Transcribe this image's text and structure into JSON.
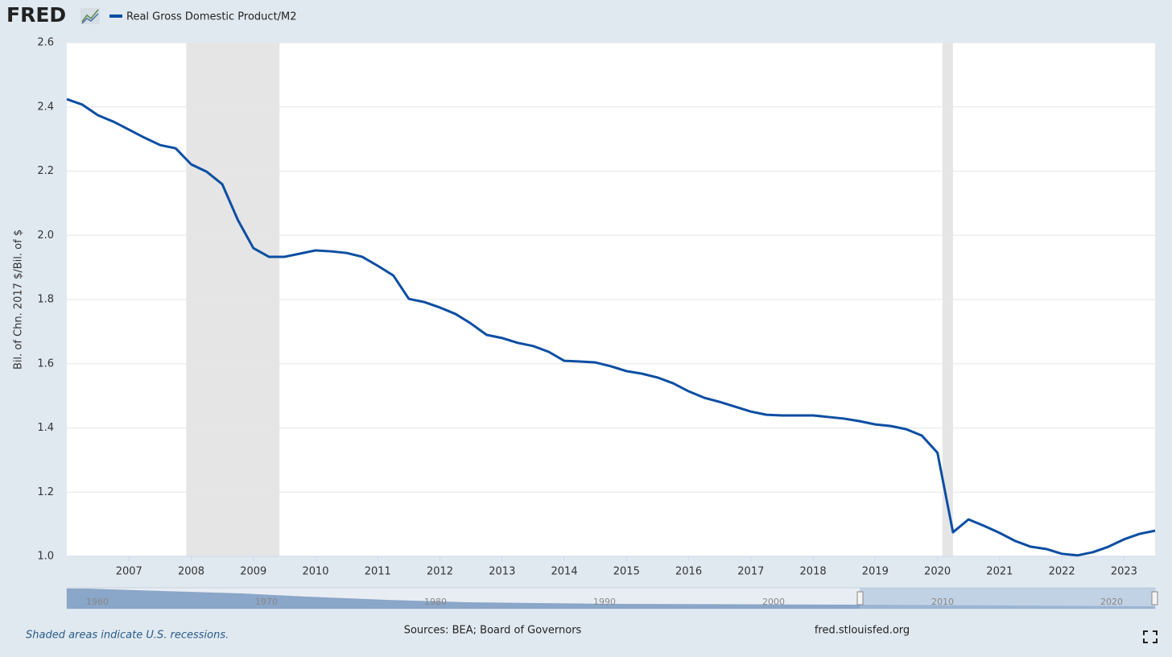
{
  "logo": "FRED",
  "chart_data": {
    "type": "line",
    "y_label": "Bil. of Chn. 2017 $/Bil. of $",
    "x": [
      2006,
      2006.25,
      2006.5,
      2006.75,
      2007,
      2007.25,
      2007.5,
      2007.75,
      2008,
      2008.25,
      2008.5,
      2008.75,
      2009,
      2009.25,
      2009.5,
      2009.75,
      2010,
      2010.25,
      2010.5,
      2010.75,
      2011,
      2011.25,
      2011.5,
      2011.75,
      2012,
      2012.25,
      2012.5,
      2012.75,
      2013,
      2013.25,
      2013.5,
      2013.75,
      2014,
      2014.25,
      2014.5,
      2014.75,
      2015,
      2015.25,
      2015.5,
      2015.75,
      2016,
      2016.25,
      2016.5,
      2016.75,
      2017,
      2017.25,
      2017.5,
      2017.75,
      2018,
      2018.25,
      2018.5,
      2018.75,
      2019,
      2019.25,
      2019.5,
      2019.75,
      2020,
      2020.25,
      2020.5,
      2020.75,
      2021,
      2021.25,
      2021.5,
      2021.75,
      2022,
      2022.25,
      2022.5,
      2022.75,
      2023,
      2023.25,
      2023.5
    ],
    "series": [
      {
        "name": "Real Gross Domestic Product/M2",
        "color": "#0b4ea2",
        "values": [
          2.424,
          2.407,
          2.374,
          2.354,
          2.329,
          2.304,
          2.281,
          2.271,
          2.221,
          2.198,
          2.159,
          2.048,
          1.96,
          1.933,
          1.933,
          1.943,
          1.953,
          1.95,
          1.945,
          1.933,
          1.905,
          1.875,
          1.802,
          1.792,
          1.775,
          1.755,
          1.725,
          1.69,
          1.68,
          1.665,
          1.655,
          1.637,
          1.609,
          1.607,
          1.604,
          1.592,
          1.577,
          1.569,
          1.557,
          1.539,
          1.514,
          1.494,
          1.481,
          1.466,
          1.451,
          1.441,
          1.439,
          1.439,
          1.439,
          1.434,
          1.429,
          1.421,
          1.411,
          1.406,
          1.396,
          1.376,
          1.323,
          1.075,
          1.115,
          1.095,
          1.073,
          1.048,
          1.03,
          1.023,
          1.008,
          1.003,
          1.013,
          1.03,
          1.053,
          1.07,
          1.08
        ]
      }
    ],
    "recessions": [
      [
        2007.92,
        2009.42
      ],
      [
        2020.08,
        2020.25
      ]
    ],
    "recession_color": "#e5e5e5",
    "xlim": [
      2006,
      2023.5
    ],
    "xticks": [
      2007,
      2008,
      2009,
      2010,
      2011,
      2012,
      2013,
      2014,
      2015,
      2016,
      2017,
      2018,
      2019,
      2020,
      2021,
      2022,
      2023
    ],
    "ylim": [
      1,
      2.6
    ],
    "yticks": [
      {
        "value": 1,
        "label": "1.0"
      },
      1.2,
      1.4,
      1.6,
      1.8,
      {
        "value": 2,
        "label": "2.0"
      },
      2.2,
      2.4,
      2.6
    ],
    "grid": true
  },
  "navigator": {
    "labels": [
      "1960",
      "1970",
      "1980",
      "1990",
      "2000",
      "2010",
      "2020"
    ]
  },
  "footer": {
    "note": "Shaded areas indicate U.S. recessions.",
    "sources": "Sources: BEA; Board of Governors",
    "site": "fred.stlouisfed.org"
  }
}
